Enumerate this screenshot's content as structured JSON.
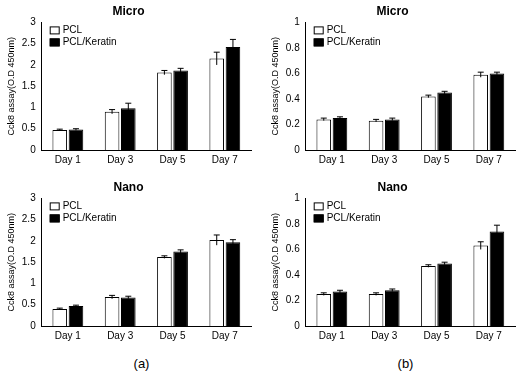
{
  "captions": [
    "(a)",
    "(b)"
  ],
  "chart_data": [
    {
      "type": "bar",
      "panel": "(a)",
      "title": "Micro",
      "y_label": "Cck8 assay(O.D 450nm)",
      "categories": [
        "Day 1",
        "Day 3",
        "Day 5",
        "Day 7"
      ],
      "series": [
        {
          "name": "PCL",
          "color": "#ffffff",
          "values": [
            0.47,
            0.9,
            1.82,
            2.15
          ],
          "errors": [
            0.02,
            0.05,
            0.05,
            0.15
          ]
        },
        {
          "name": "PCL/Keratin",
          "color": "#000000",
          "values": [
            0.48,
            0.98,
            1.87,
            2.42
          ],
          "errors": [
            0.02,
            0.12,
            0.05,
            0.18
          ]
        }
      ],
      "ylim": [
        0,
        3
      ],
      "yticks": [
        0,
        0.5,
        1,
        1.5,
        2,
        2.5,
        3
      ],
      "grid": false,
      "legend": "upper left"
    },
    {
      "type": "bar",
      "panel": "(a)",
      "title": "Nano",
      "y_label": "Cck8 assay(O.D 450nm)",
      "categories": [
        "Day 1",
        "Day 3",
        "Day 5",
        "Day 7"
      ],
      "series": [
        {
          "name": "PCL",
          "color": "#ffffff",
          "values": [
            0.4,
            0.68,
            1.62,
            2.02
          ],
          "errors": [
            0.02,
            0.04,
            0.03,
            0.12
          ]
        },
        {
          "name": "PCL/Keratin",
          "color": "#000000",
          "values": [
            0.47,
            0.67,
            1.75,
            1.97
          ],
          "errors": [
            0.02,
            0.03,
            0.04,
            0.06
          ]
        }
      ],
      "ylim": [
        0,
        3
      ],
      "yticks": [
        0,
        0.5,
        1,
        1.5,
        2,
        2.5,
        3
      ],
      "grid": false,
      "legend": "upper left"
    },
    {
      "type": "bar",
      "panel": "(b)",
      "title": "Micro",
      "y_label": "Cck8 assay(O.D 450nm)",
      "categories": [
        "Day 1",
        "Day 3",
        "Day 5",
        "Day 7"
      ],
      "series": [
        {
          "name": "PCL",
          "color": "#ffffff",
          "values": [
            0.24,
            0.23,
            0.42,
            0.59
          ],
          "errors": [
            0.01,
            0.01,
            0.01,
            0.02
          ]
        },
        {
          "name": "PCL/Keratin",
          "color": "#000000",
          "values": [
            0.25,
            0.24,
            0.45,
            0.6
          ],
          "errors": [
            0.01,
            0.01,
            0.01,
            0.01
          ]
        }
      ],
      "ylim": [
        0,
        1
      ],
      "yticks": [
        0,
        0.2,
        0.4,
        0.6,
        0.8,
        1
      ],
      "grid": false,
      "legend": "upper left"
    },
    {
      "type": "bar",
      "panel": "(b)",
      "title": "Nano",
      "y_label": "Cck8 assay(O.D 450nm)",
      "categories": [
        "Day 1",
        "Day 3",
        "Day 5",
        "Day 7"
      ],
      "series": [
        {
          "name": "PCL",
          "color": "#ffffff",
          "values": [
            0.25,
            0.25,
            0.47,
            0.63
          ],
          "errors": [
            0.01,
            0.01,
            0.01,
            0.03
          ]
        },
        {
          "name": "PCL/Keratin",
          "color": "#000000",
          "values": [
            0.27,
            0.28,
            0.49,
            0.74
          ],
          "errors": [
            0.01,
            0.01,
            0.01,
            0.05
          ]
        }
      ],
      "ylim": [
        0,
        1
      ],
      "yticks": [
        0,
        0.2,
        0.4,
        0.6,
        0.8,
        1
      ],
      "grid": false,
      "legend": "upper left"
    }
  ]
}
